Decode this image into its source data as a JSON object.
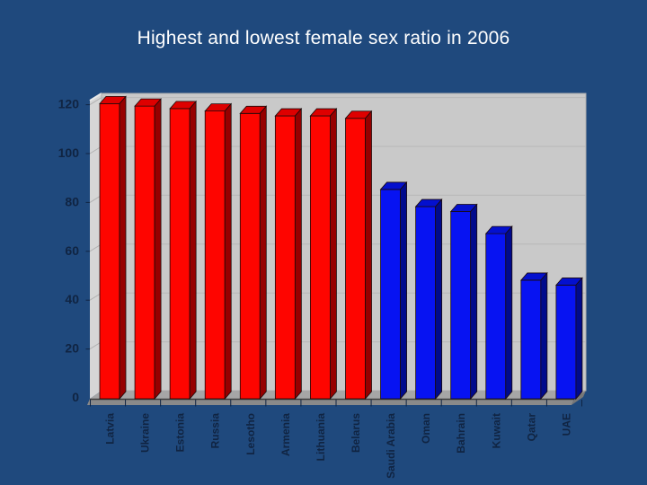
{
  "title": "Highest and lowest female sex ratio in 2006",
  "colors": {
    "background": "#1F497D",
    "title_text": "#FFFFFF",
    "axis_text": "#102442",
    "back_wall": "#C9C9C9",
    "left_wall": "#D6D6D6",
    "wall_top_edge": "#E9E9E9",
    "wall_outline": "#ADADAD",
    "floor": "#A6A6A6",
    "floor_bevel": "#8A8A8A",
    "floor_bevel_right": "#777777",
    "gridline": "#B7B7B7",
    "wall_dash": "#B2B2B2",
    "axis_line": "#3C3C3C",
    "bar_outline": "#1A0A0A",
    "bars": {
      "highest": {
        "front": "#FE0500",
        "top": "#DE0000",
        "side": "#960000"
      },
      "lowest": {
        "front": "#0713F2",
        "top": "#0410CE",
        "side": "#000A8C"
      }
    }
  },
  "chart_data": {
    "type": "bar",
    "style": "3d-column",
    "title": "Highest and lowest female sex ratio in 2006",
    "xlabel": "",
    "ylabel": "",
    "categories": [
      "Latvia",
      "Ukraine",
      "Estonia",
      "Russia",
      "Lesotho",
      "Armenia",
      "Lithuania",
      "Belarus",
      "Saudi Arabia",
      "Oman",
      "Bahrain",
      "Kuwait",
      "Qatar",
      "UAE"
    ],
    "values": [
      120,
      119,
      118,
      117,
      116,
      115,
      115,
      114,
      85,
      78,
      76,
      67,
      48,
      46
    ],
    "groups": [
      "highest",
      "highest",
      "highest",
      "highest",
      "highest",
      "highest",
      "highest",
      "highest",
      "lowest",
      "lowest",
      "lowest",
      "lowest",
      "lowest",
      "lowest"
    ],
    "yticks": [
      0,
      20,
      40,
      60,
      80,
      100,
      120
    ],
    "ytick_labels": [
      "0",
      "20",
      "40",
      "60",
      "80",
      "100",
      "120"
    ],
    "ylim": [
      0,
      123
    ],
    "grid": true,
    "legend": "none"
  }
}
